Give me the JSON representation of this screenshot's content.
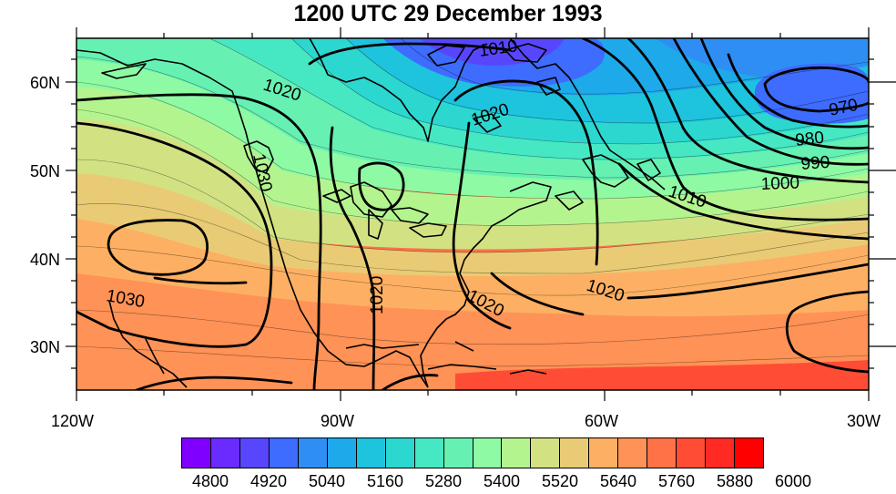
{
  "title": "1200 UTC 29 December 1993",
  "map": {
    "lon_labels": [
      "120W",
      "90W",
      "60W",
      "30W"
    ],
    "lat_labels": [
      "60N",
      "50N",
      "40N",
      "30N"
    ],
    "lon_range": [
      -120,
      -30
    ],
    "lat_range": [
      25,
      65
    ]
  },
  "contour_labels": [
    "1010",
    "1020",
    "970",
    "980",
    "990",
    "1000",
    "1010",
    "1030",
    "1030",
    "1020",
    "1020",
    "1020",
    "1020"
  ],
  "colorbar": {
    "colors": [
      "#8000ff",
      "#6a2bff",
      "#5846ff",
      "#3d6cff",
      "#2f8ef3",
      "#1ea9ea",
      "#1ec3de",
      "#2cd7d0",
      "#46e8c3",
      "#66f1b3",
      "#8efaa4",
      "#b4f48f",
      "#d2e283",
      "#e9cb75",
      "#fdb063",
      "#ff9256",
      "#ff7147",
      "#ff4d35",
      "#ff2a23",
      "#ff0000"
    ],
    "labels": [
      "4800",
      "4920",
      "5040",
      "5160",
      "5280",
      "5400",
      "5520",
      "5640",
      "5760",
      "5880",
      "6000"
    ]
  }
}
